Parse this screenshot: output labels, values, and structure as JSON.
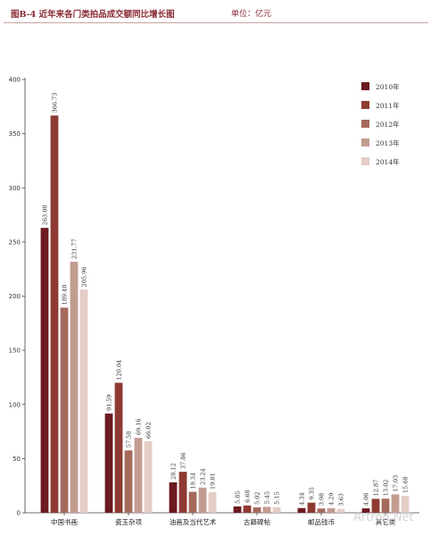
{
  "title": "图B-4  近年来各门类拍品成交额同比增长图",
  "unit": "单位：亿元",
  "chart_data": {
    "type": "bar",
    "categories": [
      "中国书画",
      "瓷玉杂项",
      "油画及当代艺术",
      "古籍碑帖",
      "邮品钱币",
      "其它类"
    ],
    "series": [
      {
        "name": "2010年",
        "values": [
          263.0,
          91.59,
          28.12,
          5.85,
          4.34,
          4.06
        ],
        "color": "#6b1a20"
      },
      {
        "name": "2011年",
        "values": [
          366.73,
          120.04,
          37.86,
          6.68,
          9.35,
          12.87
        ],
        "color": "#8e3a32"
      },
      {
        "name": "2012年",
        "values": [
          189.4,
          57.58,
          19.34,
          5.02,
          3.98,
          13.02
        ],
        "color": "#a56a5c"
      },
      {
        "name": "2013年",
        "values": [
          231.77,
          69.16,
          23.24,
          5.45,
          4.29,
          17.03
        ],
        "color": "#c39c90"
      },
      {
        "name": "2014年",
        "values": [
          205.96,
          66.02,
          19.01,
          5.15,
          3.63,
          15.68
        ],
        "color": "#e3cdc5"
      }
    ],
    "value_labels": [
      [
        "263.00",
        "366.73",
        "189.40",
        "231.77",
        "205.96"
      ],
      [
        "91.59",
        "120.04",
        "57.58",
        "69.16",
        "66.02"
      ],
      [
        "28.12",
        "37.86",
        "19.34",
        "23.24",
        "19.01"
      ],
      [
        "5.85",
        "6.68",
        "5.02",
        "5.45",
        "5.15"
      ],
      [
        "4.34",
        "9.35",
        "3.98",
        "4.29",
        "3.63"
      ],
      [
        "4.06",
        "12.87",
        "13.02",
        "17.03",
        "15.68"
      ]
    ],
    "ylim": [
      0,
      400
    ],
    "yticks": [
      0,
      50,
      100,
      150,
      200,
      250,
      300,
      350,
      400
    ],
    "legend_position": "top-right",
    "grid": false
  },
  "watermark": "Artron.Net"
}
